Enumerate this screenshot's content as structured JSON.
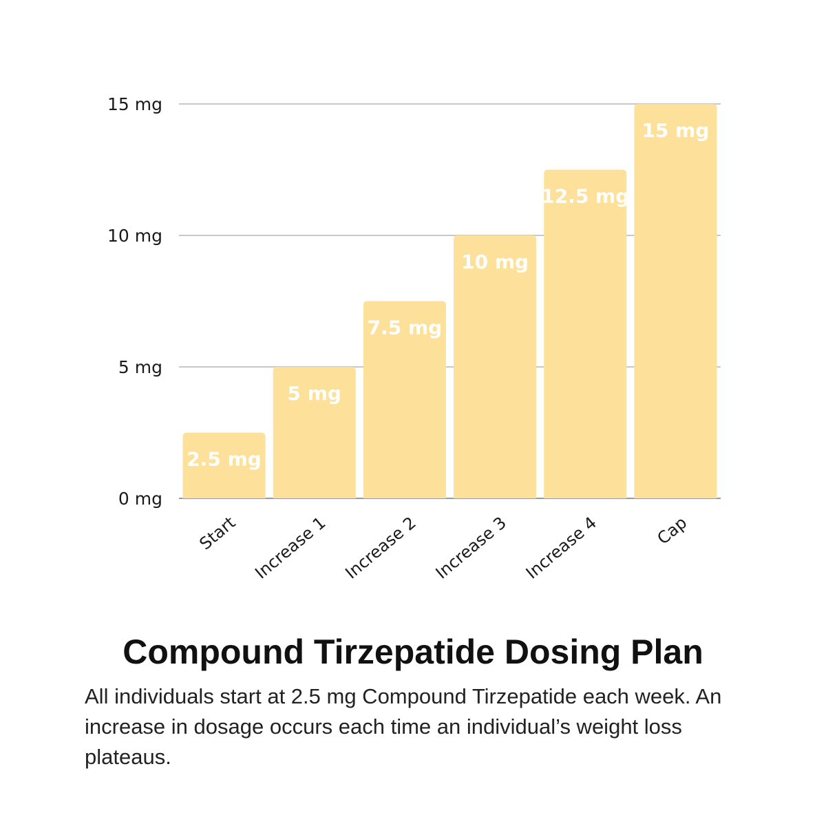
{
  "chart_data": {
    "type": "bar",
    "categories": [
      "Start",
      "Increase 1",
      "Increase 2",
      "Increase 3",
      "Increase 4",
      "Cap"
    ],
    "values": [
      2.5,
      5,
      7.5,
      10,
      12.5,
      15
    ],
    "data_labels": [
      "2.5 mg",
      "5 mg",
      "7.5 mg",
      "10 mg",
      "12.5 mg",
      "15 mg"
    ],
    "y_ticks": [
      0,
      5,
      10,
      15
    ],
    "y_tick_labels": [
      "0 mg",
      "5 mg",
      "10 mg",
      "15 mg"
    ],
    "ylim": [
      0,
      15
    ],
    "grid": true,
    "legend": "none",
    "bar_color": "#fde09a",
    "grid_color": "#c8c8c8"
  },
  "title": "Compound Tirzepatide Dosing Plan",
  "description": "All individuals start at 2.5 mg Compound Tirzepatide each week. An increase in dosage occurs each time an individual’s weight loss plateaus."
}
